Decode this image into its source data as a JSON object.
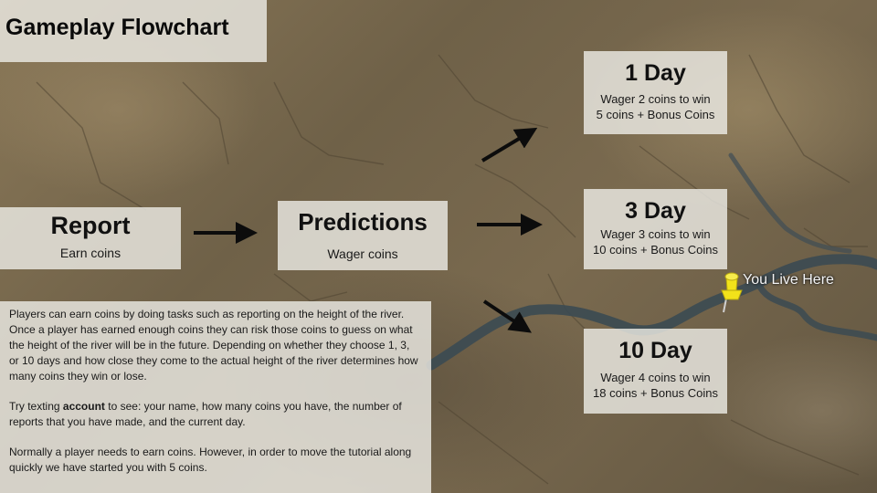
{
  "title": "Gameplay Flowchart",
  "report": {
    "title": "Report",
    "subtitle": "Earn coins"
  },
  "predictions": {
    "title": "Predictions",
    "subtitle": "Wager coins"
  },
  "outcomes": [
    {
      "title": "1 Day",
      "line1": "Wager 2 coins to win",
      "line2": "5 coins + Bonus Coins"
    },
    {
      "title": "3 Day",
      "line1": "Wager 3 coins to win",
      "line2": "10 coins + Bonus Coins"
    },
    {
      "title": "10 Day",
      "line1": "Wager 4 coins to win",
      "line2": "18  coins + Bonus Coins"
    }
  ],
  "info": {
    "p1": "Players can earn coins by doing tasks such as reporting on the height of the river. Once a player has earned enough coins they can risk those coins to guess on what the height of the river will be in the future. Depending on whether they choose 1, 3, or 10 days and how close they come to the actual height of the river determines how many coins they win or lose.",
    "p2_before": "Try texting ",
    "p2_keyword": "account",
    "p2_after": " to see: your name, how many coins you have, the number of reports that you have made, and the current day.",
    "p3": "Normally a player needs to earn coins. However, in order to move the tutorial along quickly we have started you with 5 coins."
  },
  "map": {
    "pin_label": "You Live Here"
  },
  "colors": {
    "panel": "#ECEAE4",
    "river": "#3b4a52",
    "pin": "#f2e21a"
  }
}
